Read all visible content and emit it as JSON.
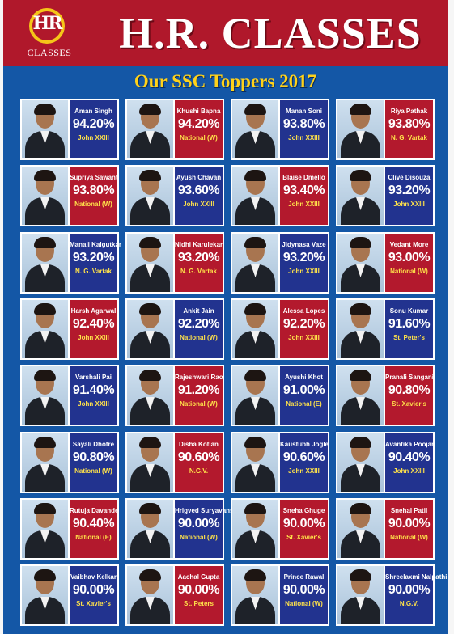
{
  "brand": {
    "name": "H.R. CLASSES",
    "logo_mark": "HR",
    "logo_text": "CLASSES"
  },
  "subtitle": "Our SSC Toppers 2017",
  "colors": {
    "header_red": "#b0182b",
    "background_blue": "#1457a6",
    "title_yellow": "#ffd21a",
    "card_blue": "#22338f",
    "card_red": "#b3192d"
  },
  "toppers": [
    {
      "name": "Aman Singh",
      "score": "94.20%",
      "school": "John XXIII",
      "panel": "blue"
    },
    {
      "name": "Khushi Bapna",
      "score": "94.20%",
      "school": "National (W)",
      "panel": "red"
    },
    {
      "name": "Manan Soni",
      "score": "93.80%",
      "school": "John XXIII",
      "panel": "blue"
    },
    {
      "name": "Riya Pathak",
      "score": "93.80%",
      "school": "N. G. Vartak",
      "panel": "red"
    },
    {
      "name": "Supriya Sawant",
      "score": "93.80%",
      "school": "National (W)",
      "panel": "red"
    },
    {
      "name": "Ayush Chavan",
      "score": "93.60%",
      "school": "John XXIII",
      "panel": "blue"
    },
    {
      "name": "Blaise Dmello",
      "score": "93.40%",
      "school": "John XXIII",
      "panel": "red"
    },
    {
      "name": "Clive Disouza",
      "score": "93.20%",
      "school": "John XXIII",
      "panel": "blue"
    },
    {
      "name": "Manali Kalgutkar",
      "score": "93.20%",
      "school": "N. G. Vartak",
      "panel": "blue"
    },
    {
      "name": "Nidhi Karulekar",
      "score": "93.20%",
      "school": "N. G. Vartak",
      "panel": "red"
    },
    {
      "name": "Jidynasa Vaze",
      "score": "93.20%",
      "school": "John XXIII",
      "panel": "blue"
    },
    {
      "name": "Vedant More",
      "score": "93.00%",
      "school": "National (W)",
      "panel": "red"
    },
    {
      "name": "Harsh Agarwal",
      "score": "92.40%",
      "school": "John XXIII",
      "panel": "red"
    },
    {
      "name": "Ankit Jain",
      "score": "92.20%",
      "school": "National (W)",
      "panel": "blue"
    },
    {
      "name": "Alessa Lopes",
      "score": "92.20%",
      "school": "John XXIII",
      "panel": "red"
    },
    {
      "name": "Sonu Kumar",
      "score": "91.60%",
      "school": "St. Peter's",
      "panel": "blue"
    },
    {
      "name": "Varshali Pai",
      "score": "91.40%",
      "school": "John XXIII",
      "panel": "blue"
    },
    {
      "name": "Rajeshwari Rao",
      "score": "91.20%",
      "school": "National (W)",
      "panel": "red"
    },
    {
      "name": "Ayushi Khot",
      "score": "91.00%",
      "school": "National (E)",
      "panel": "blue"
    },
    {
      "name": "Pranali Sangani",
      "score": "90.80%",
      "school": "St. Xavier's",
      "panel": "red"
    },
    {
      "name": "Sayali Dhotre",
      "score": "90.80%",
      "school": "National (W)",
      "panel": "blue"
    },
    {
      "name": "Disha Kotian",
      "score": "90.60%",
      "school": "N.G.V.",
      "panel": "red"
    },
    {
      "name": "Kaustubh Jogle",
      "score": "90.60%",
      "school": "John XXIII",
      "panel": "blue"
    },
    {
      "name": "Avantika Poojari",
      "score": "90.40%",
      "school": "John XXIII",
      "panel": "blue"
    },
    {
      "name": "Rutuja Davande",
      "score": "90.40%",
      "school": "National (E)",
      "panel": "red"
    },
    {
      "name": "Hrigved Suryavanshi",
      "score": "90.00%",
      "school": "National (W)",
      "panel": "blue"
    },
    {
      "name": "Sneha Ghuge",
      "score": "90.00%",
      "school": "St. Xavier's",
      "panel": "red"
    },
    {
      "name": "Snehal Patil",
      "score": "90.00%",
      "school": "National (W)",
      "panel": "red"
    },
    {
      "name": "Vaibhav Kelkar",
      "score": "90.00%",
      "school": "St. Xavier's",
      "panel": "blue"
    },
    {
      "name": "Aachal Gupta",
      "score": "90.00%",
      "school": "St. Peters",
      "panel": "red"
    },
    {
      "name": "Prince Rawal",
      "score": "90.00%",
      "school": "National (W)",
      "panel": "blue"
    },
    {
      "name": "Shreelaxmi Nalpathi",
      "score": "90.00%",
      "school": "N.G.V.",
      "panel": "blue"
    }
  ]
}
